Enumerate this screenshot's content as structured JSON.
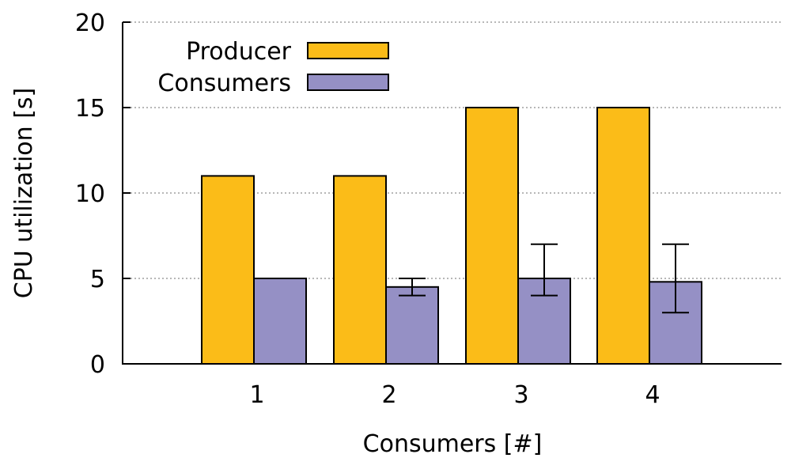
{
  "chart_data": {
    "type": "bar",
    "title": "",
    "xlabel": "Consumers [#]",
    "ylabel": "CPU utilization [s]",
    "categories": [
      "1",
      "2",
      "3",
      "4"
    ],
    "ylim": [
      0,
      20
    ],
    "yticks": [
      0,
      5,
      10,
      15,
      20
    ],
    "grid": true,
    "legend_position": "top-left",
    "series": [
      {
        "name": "Producer",
        "color": "#fbbc18",
        "values": [
          11,
          11,
          15,
          15
        ]
      },
      {
        "name": "Consumers",
        "color": "#9590c5",
        "values": [
          5,
          4.5,
          5,
          4.8
        ],
        "error_low": [
          5,
          4,
          4,
          3
        ],
        "error_high": [
          5,
          5,
          7,
          7
        ]
      }
    ]
  }
}
